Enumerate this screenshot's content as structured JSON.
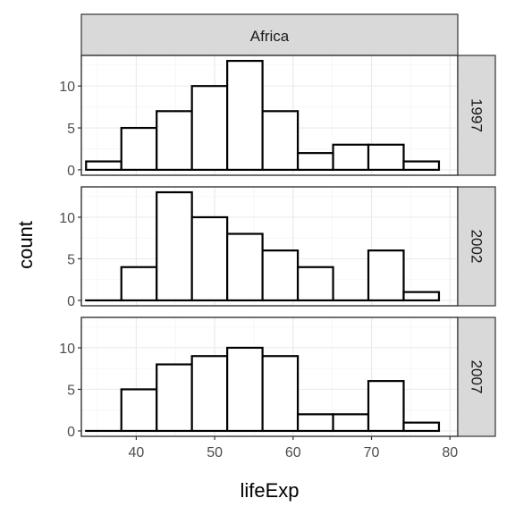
{
  "chart_data": {
    "type": "bar",
    "subtype": "histogram",
    "column_facet": "Africa",
    "xlabel": "lifeExp",
    "ylabel": "count",
    "xlim": [
      33,
      81
    ],
    "ylim": [
      0,
      13
    ],
    "x_ticks": [
      40,
      50,
      60,
      70,
      80
    ],
    "y_ticks": [
      0,
      5,
      10
    ],
    "grid": true,
    "bins": [
      {
        "from": 33.6,
        "to": 38.1
      },
      {
        "from": 38.1,
        "to": 42.6
      },
      {
        "from": 42.6,
        "to": 47.1
      },
      {
        "from": 47.1,
        "to": 51.6
      },
      {
        "from": 51.6,
        "to": 56.1
      },
      {
        "from": 56.1,
        "to": 60.6
      },
      {
        "from": 60.6,
        "to": 65.1
      },
      {
        "from": 65.1,
        "to": 69.6
      },
      {
        "from": 69.6,
        "to": 74.1
      },
      {
        "from": 74.1,
        "to": 78.6
      }
    ],
    "series": [
      {
        "name": "1997",
        "values": [
          1,
          5,
          7,
          10,
          13,
          7,
          2,
          3,
          3,
          1
        ]
      },
      {
        "name": "2002",
        "values": [
          0,
          4,
          13,
          10,
          8,
          6,
          4,
          0,
          6,
          1
        ]
      },
      {
        "name": "2007",
        "values": [
          0,
          5,
          8,
          9,
          10,
          9,
          2,
          2,
          6,
          1
        ]
      }
    ],
    "colors": {
      "bar_fill": "#ffffff",
      "bar_stroke": "#000000",
      "strip_fill": "#d9d9d9",
      "panel_border": "#333333",
      "grid_major": "#ebebeb",
      "grid_minor": "#f5f5f5",
      "tick_text": "#4d4d4d"
    }
  }
}
